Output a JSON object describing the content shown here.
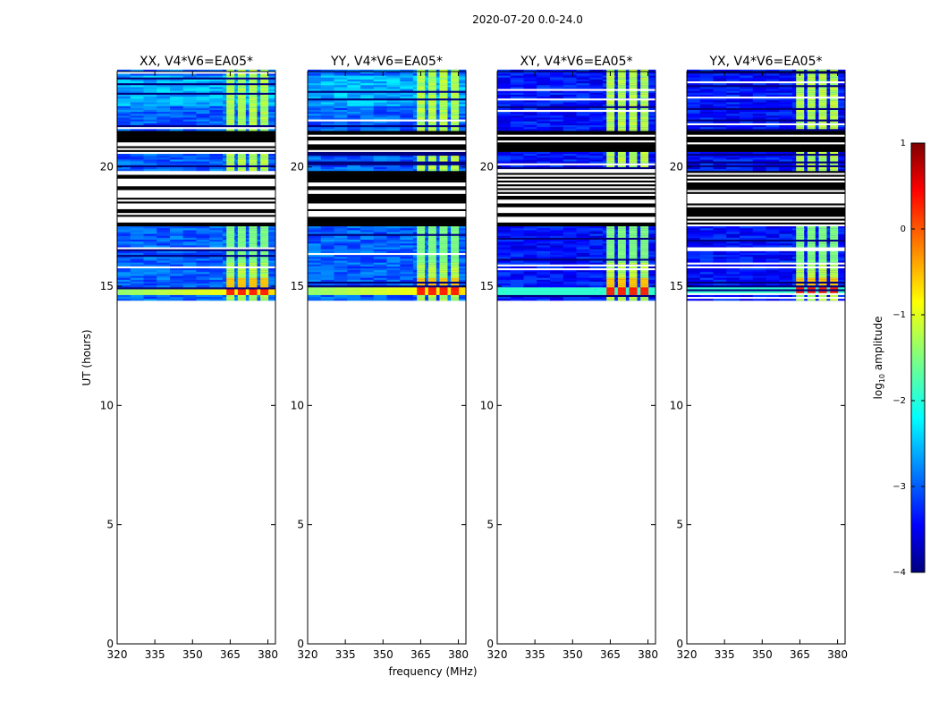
{
  "figure_title": "2020-07-20 0.0-24.0",
  "xlabel": "frequency (MHz)",
  "ylabel": "UT (hours)",
  "chart_data": {
    "type": "heatmap",
    "x_range": [
      320,
      383
    ],
    "y_range": [
      0,
      24
    ],
    "x_ticks": [
      {
        "value": 320,
        "label": "320"
      },
      {
        "value": 335,
        "label": "335"
      },
      {
        "value": 350,
        "label": "350"
      },
      {
        "value": 365,
        "label": "365"
      },
      {
        "value": 380,
        "label": "380"
      }
    ],
    "y_ticks": [
      {
        "value": 0,
        "label": "0"
      },
      {
        "value": 5,
        "label": "5"
      },
      {
        "value": 10,
        "label": "10"
      },
      {
        "value": 15,
        "label": "15"
      },
      {
        "value": 20,
        "label": "20"
      }
    ],
    "panels": [
      {
        "title": "XX, V4*V6=EA05*",
        "pol": "XX"
      },
      {
        "title": "YY, V4*V6=EA05*",
        "pol": "YY"
      },
      {
        "title": "XY, V4*V6=EA05*",
        "pol": "XY"
      },
      {
        "title": "YX, V4*V6=EA05*",
        "pol": "YX"
      }
    ],
    "data_time_range": [
      14.4,
      24.0
    ],
    "flagged_time_ranges": [
      [
        17.5,
        19.8
      ],
      [
        20.6,
        21.5
      ]
    ],
    "rfi_freq_range": [
      363,
      381
    ],
    "strong_signal_time": [
      14.6,
      14.9
    ],
    "colorbar": {
      "label": "log10 amplitude",
      "label_base": "log",
      "label_sub": "10",
      "label_rest": " amplitude",
      "range": [
        -4,
        1
      ],
      "ticks": [
        {
          "value": 1,
          "label": "1"
        },
        {
          "value": 0,
          "label": "0"
        },
        {
          "value": -1,
          "label": "−1"
        },
        {
          "value": -2,
          "label": "−2"
        },
        {
          "value": -3,
          "label": "−3"
        },
        {
          "value": -4,
          "label": "−4"
        }
      ],
      "colormap": "jet"
    }
  }
}
